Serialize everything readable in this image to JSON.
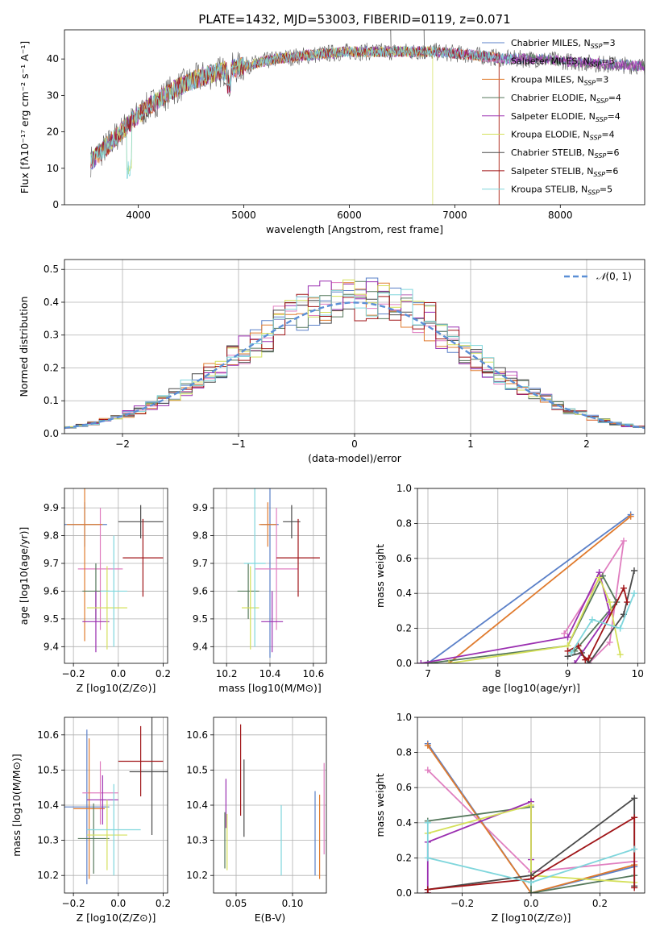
{
  "page": {
    "title": "PLATE=1432, MJD=53003, FIBERID=0119, z=0.071"
  },
  "colors": {
    "Chabrier MILES": "#5b80c8",
    "Salpeter MILES": "#e07fc0",
    "Kroupa MILES": "#e07b2e",
    "Chabrier ELODIE": "#55785b",
    "Salpeter ELODIE": "#9a2fb0",
    "Kroupa ELODIE": "#d4e05a",
    "Chabrier STELIB": "#4a4a4a",
    "Salpeter STELIB": "#a01518",
    "Kroupa STELIB": "#7fd6dc"
  },
  "chart_data": [
    {
      "id": "spectrum",
      "type": "line",
      "title": "PLATE=1432, MJD=53003, FIBERID=0119, z=0.071",
      "xlabel": "wavelength [Angstrom, rest frame]",
      "ylabel": "Flux [fλ10⁻¹⁷ erg cm⁻² s⁻¹ A⁻¹]",
      "xlim": [
        3300,
        8800
      ],
      "ylim": [
        0,
        48
      ],
      "xticks": [
        4000,
        5000,
        6000,
        7000,
        8000
      ],
      "yticks": [
        0,
        10,
        20,
        30,
        40
      ],
      "grid": false,
      "legend_position": "top-right",
      "legend": [
        "Chabrier MILES, N_SSP=3",
        "Salpeter MILES, N_SSP=3",
        "Kroupa MILES, N_SSP=3",
        "Chabrier ELODIE, N_SSP=4",
        "Salpeter ELODIE, N_SSP=4",
        "Kroupa ELODIE, N_SSP=4",
        "Chabrier STELIB, N_SSP=6",
        "Salpeter STELIB, N_SSP=6",
        "Kroupa STELIB, N_SSP=5"
      ],
      "continuum": {
        "x": [
          3550,
          3700,
          3900,
          4100,
          4300,
          4500,
          4700,
          5000,
          5300,
          5600,
          6000,
          6400,
          6800,
          7200,
          7500,
          7800,
          8200,
          8800
        ],
        "y": [
          12,
          16,
          22,
          27,
          31,
          34,
          36,
          38,
          40,
          41,
          42,
          42,
          42,
          41,
          40,
          40,
          39,
          38
        ]
      }
    },
    {
      "id": "residuals",
      "type": "bar",
      "xlabel": "(data-model)/error",
      "ylabel": "Normed distribution",
      "xlim": [
        -2.5,
        2.5
      ],
      "ylim": [
        0,
        0.53
      ],
      "xticks": [
        -2,
        -1,
        0,
        1,
        2
      ],
      "yticks": [
        0.0,
        0.1,
        0.2,
        0.3,
        0.4,
        0.5
      ],
      "grid": true,
      "legend_position": "top-right",
      "legend": [
        "N(0,1)"
      ]
    },
    {
      "id": "age-vs-Z",
      "type": "scatter",
      "xlabel": "Z [log10(Z/Z⊙)]",
      "ylabel": "age  [log10(age/yr)]",
      "xlim": [
        -0.24,
        0.22
      ],
      "ylim": [
        9.34,
        9.97
      ],
      "xticks": [
        -0.2,
        0.0,
        0.2
      ],
      "yticks": [
        9.4,
        9.5,
        9.6,
        9.7,
        9.8,
        9.9
      ],
      "grid": true,
      "points": [
        {
          "model": "Chabrier MILES",
          "x": -0.15,
          "xerr": 0.1,
          "y": 9.84,
          "yerr": 0.08
        },
        {
          "model": "Salpeter MILES",
          "x": -0.08,
          "xerr": 0.1,
          "y": 9.68,
          "yerr": 0.22
        },
        {
          "model": "Kroupa MILES",
          "x": -0.15,
          "xerr": 0.08,
          "y": 9.84,
          "yerr": 0.42
        },
        {
          "model": "Chabrier ELODIE",
          "x": -0.1,
          "xerr": 0.06,
          "y": 9.6,
          "yerr": 0.1
        },
        {
          "model": "Salpeter ELODIE",
          "x": -0.1,
          "xerr": 0.06,
          "y": 9.49,
          "yerr": 0.11
        },
        {
          "model": "Kroupa ELODIE",
          "x": -0.05,
          "xerr": 0.09,
          "y": 9.54,
          "yerr": 0.15
        },
        {
          "model": "Chabrier STELIB",
          "x": 0.1,
          "xerr": 0.1,
          "y": 9.85,
          "yerr": 0.06
        },
        {
          "model": "Salpeter STELIB",
          "x": 0.11,
          "xerr": 0.09,
          "y": 9.72,
          "yerr": 0.14
        },
        {
          "model": "Kroupa STELIB",
          "x": -0.02,
          "xerr": 0.06,
          "y": 9.6,
          "yerr": 0.2
        }
      ]
    },
    {
      "id": "age-vs-mass",
      "type": "scatter",
      "xlabel": "mass [log10(M/M⊙)]",
      "ylabel": "",
      "xlim": [
        10.14,
        10.66
      ],
      "ylim": [
        9.34,
        9.97
      ],
      "xticks": [
        10.2,
        10.4,
        10.6
      ],
      "yticks": [
        9.4,
        9.5,
        9.6,
        9.7,
        9.8,
        9.9
      ],
      "grid": true,
      "points": [
        {
          "model": "Chabrier MILES",
          "x": 10.4,
          "xerr": 0.04,
          "y": 9.84,
          "yerr": 0.48
        },
        {
          "model": "Salpeter MILES",
          "x": 10.43,
          "xerr": 0.1,
          "y": 9.68,
          "yerr": 0.22
        },
        {
          "model": "Kroupa MILES",
          "x": 10.39,
          "xerr": 0.04,
          "y": 9.84,
          "yerr": 0.08
        },
        {
          "model": "Chabrier ELODIE",
          "x": 10.3,
          "xerr": 0.05,
          "y": 9.6,
          "yerr": 0.1
        },
        {
          "model": "Salpeter ELODIE",
          "x": 10.41,
          "xerr": 0.05,
          "y": 9.49,
          "yerr": 0.11
        },
        {
          "model": "Kroupa ELODIE",
          "x": 10.31,
          "xerr": 0.04,
          "y": 9.54,
          "yerr": 0.15
        },
        {
          "model": "Chabrier STELIB",
          "x": 10.5,
          "xerr": 0.04,
          "y": 9.85,
          "yerr": 0.06
        },
        {
          "model": "Salpeter STELIB",
          "x": 10.53,
          "xerr": 0.1,
          "y": 9.72,
          "yerr": 0.14
        },
        {
          "model": "Kroupa STELIB",
          "x": 10.33,
          "xerr": 0.05,
          "y": 9.7,
          "yerr": 0.3
        }
      ]
    },
    {
      "id": "weights-vs-age",
      "type": "line",
      "xlabel": "age  [log10(age/yr)]",
      "ylabel": "mass weight",
      "xlim": [
        6.85,
        10.1
      ],
      "ylim": [
        0,
        1
      ],
      "xticks": [
        7,
        8,
        9,
        10
      ],
      "yticks": [
        0.0,
        0.2,
        0.4,
        0.6,
        0.8,
        1.0
      ],
      "grid": true,
      "series": [
        {
          "model": "Chabrier MILES",
          "x": [
            7.0,
            9.9
          ],
          "y": [
            0.0,
            0.85
          ]
        },
        {
          "model": "Salpeter MILES",
          "x": [
            8.95,
            9.8,
            9.6,
            9.3
          ],
          "y": [
            0.17,
            0.7,
            0.12,
            0.0
          ]
        },
        {
          "model": "Kroupa MILES",
          "x": [
            7.3,
            9.9
          ],
          "y": [
            0.0,
            0.84
          ]
        },
        {
          "model": "Chabrier ELODIE",
          "x": [
            7.0,
            9.0,
            9.5,
            9.7,
            9.1
          ],
          "y": [
            0.0,
            0.1,
            0.5,
            0.35,
            0.07
          ]
        },
        {
          "model": "Salpeter ELODIE",
          "x": [
            6.9,
            9.0,
            9.45,
            9.6,
            9.1
          ],
          "y": [
            0.0,
            0.15,
            0.52,
            0.29,
            0.0
          ]
        },
        {
          "model": "Kroupa ELODIE",
          "x": [
            7.3,
            9.0,
            9.45,
            9.6,
            9.75
          ],
          "y": [
            0.0,
            0.1,
            0.49,
            0.35,
            0.05
          ]
        },
        {
          "model": "Chabrier STELIB",
          "x": [
            9.0,
            9.2,
            9.3,
            9.8,
            9.95
          ],
          "y": [
            0.04,
            0.06,
            0.0,
            0.28,
            0.53
          ]
        },
        {
          "model": "Salpeter STELIB",
          "x": [
            9.0,
            9.15,
            9.25,
            9.3,
            9.8,
            9.85
          ],
          "y": [
            0.07,
            0.1,
            0.02,
            0.03,
            0.43,
            0.35
          ]
        },
        {
          "model": "Kroupa STELIB",
          "x": [
            9.05,
            9.35,
            9.75,
            9.95
          ],
          "y": [
            0.06,
            0.25,
            0.2,
            0.4
          ]
        }
      ]
    },
    {
      "id": "mass-vs-Z",
      "type": "scatter",
      "xlabel": "Z [log10(Z/Z⊙)]",
      "ylabel": "mass [log10(M/M⊙)]",
      "xlim": [
        -0.24,
        0.22
      ],
      "ylim": [
        10.15,
        10.65
      ],
      "xticks": [
        -0.2,
        0.0,
        0.2
      ],
      "yticks": [
        10.2,
        10.3,
        10.4,
        10.5,
        10.6
      ],
      "grid": true,
      "points": [
        {
          "model": "Chabrier MILES",
          "x": -0.14,
          "xerr": 0.1,
          "y": 10.395,
          "yerr": 0.22
        },
        {
          "model": "Salpeter MILES",
          "x": -0.08,
          "xerr": 0.08,
          "y": 10.435,
          "yerr": 0.09
        },
        {
          "model": "Kroupa MILES",
          "x": -0.13,
          "xerr": 0.07,
          "y": 10.39,
          "yerr": 0.2
        },
        {
          "model": "Chabrier ELODIE",
          "x": -0.11,
          "xerr": 0.07,
          "y": 10.305,
          "yerr": 0.1
        },
        {
          "model": "Salpeter ELODIE",
          "x": -0.07,
          "xerr": 0.07,
          "y": 10.415,
          "yerr": 0.07
        },
        {
          "model": "Kroupa ELODIE",
          "x": -0.05,
          "xerr": 0.09,
          "y": 10.315,
          "yerr": 0.1
        },
        {
          "model": "Chabrier STELIB",
          "x": 0.15,
          "xerr": 0.1,
          "y": 10.495,
          "yerr": 0.18
        },
        {
          "model": "Salpeter STELIB",
          "x": 0.1,
          "xerr": 0.1,
          "y": 10.525,
          "yerr": 0.1
        },
        {
          "model": "Kroupa STELIB",
          "x": -0.02,
          "xerr": 0.12,
          "y": 10.33,
          "yerr": 0.13
        }
      ]
    },
    {
      "id": "mass-vs-EBV",
      "type": "scatter",
      "xlabel": "E(B-V)",
      "ylabel": "",
      "xlim": [
        0.03,
        0.13
      ],
      "ylim": [
        10.15,
        10.65
      ],
      "xticks": [
        0.05,
        0.1
      ],
      "yticks": [
        10.2,
        10.3,
        10.4,
        10.5,
        10.6
      ],
      "grid": true,
      "points": [
        {
          "model": "Chabrier MILES",
          "x": 0.12,
          "xerr": 0.0,
          "y": 10.32,
          "yerr": 0.12
        },
        {
          "model": "Salpeter MILES",
          "x": 0.128,
          "xerr": 0.0,
          "y": 10.39,
          "yerr": 0.13
        },
        {
          "model": "Kroupa MILES",
          "x": 0.124,
          "xerr": 0.0,
          "y": 10.31,
          "yerr": 0.12
        },
        {
          "model": "Chabrier ELODIE",
          "x": 0.04,
          "xerr": 0.0,
          "y": 10.3,
          "yerr": 0.08
        },
        {
          "model": "Salpeter ELODIE",
          "x": 0.041,
          "xerr": 0.0,
          "y": 10.405,
          "yerr": 0.07
        },
        {
          "model": "Kroupa ELODIE",
          "x": 0.042,
          "xerr": 0.0,
          "y": 10.295,
          "yerr": 0.08
        },
        {
          "model": "Chabrier STELIB",
          "x": 0.057,
          "xerr": 0.0,
          "y": 10.42,
          "yerr": 0.11
        },
        {
          "model": "Salpeter STELIB",
          "x": 0.054,
          "xerr": 0.0,
          "y": 10.5,
          "yerr": 0.13
        },
        {
          "model": "Kroupa STELIB",
          "x": 0.09,
          "xerr": 0.0,
          "y": 10.3,
          "yerr": 0.1
        }
      ]
    },
    {
      "id": "weights-vs-Z",
      "type": "line",
      "xlabel": "Z [log10(Z/Z⊙)]",
      "ylabel": "mass weight",
      "xlim": [
        -0.33,
        0.33
      ],
      "ylim": [
        0,
        1
      ],
      "xticks": [
        -0.2,
        0.0,
        0.2
      ],
      "yticks": [
        0.0,
        0.2,
        0.4,
        0.6,
        0.8,
        1.0
      ],
      "grid": true,
      "series": [
        {
          "model": "Chabrier MILES",
          "x": [
            -0.3,
            0.0,
            0.3
          ],
          "y": [
            0.85,
            0.0,
            0.15
          ]
        },
        {
          "model": "Salpeter MILES",
          "x": [
            -0.3,
            0.0,
            0.3
          ],
          "y": [
            0.7,
            0.12,
            0.18
          ]
        },
        {
          "model": "Kroupa MILES",
          "x": [
            -0.3,
            0.0,
            0.3
          ],
          "y": [
            0.84,
            0.0,
            0.16
          ]
        },
        {
          "model": "Chabrier ELODIE",
          "x": [
            -0.3,
            0.0,
            0.0,
            0.3
          ],
          "y": [
            0.41,
            0.49,
            0.0,
            0.1
          ]
        },
        {
          "model": "Salpeter ELODIE",
          "x": [
            -0.3,
            -0.3,
            0.0,
            0.0
          ],
          "y": [
            0.0,
            0.29,
            0.52,
            0.19
          ]
        },
        {
          "model": "Kroupa ELODIE",
          "x": [
            -0.3,
            0.0,
            0.0,
            0.3
          ],
          "y": [
            0.34,
            0.5,
            0.1,
            0.06
          ]
        },
        {
          "model": "Chabrier STELIB",
          "x": [
            -0.3,
            0.0,
            0.3,
            0.3
          ],
          "y": [
            0.02,
            0.1,
            0.54,
            0.04
          ]
        },
        {
          "model": "Salpeter STELIB",
          "x": [
            -0.3,
            -0.3,
            0.0,
            0.3,
            0.3
          ],
          "y": [
            0.0,
            0.02,
            0.08,
            0.43,
            0.03
          ]
        },
        {
          "model": "Kroupa STELIB",
          "x": [
            -0.3,
            -0.3,
            0.0,
            0.3
          ],
          "y": [
            0.4,
            0.2,
            0.06,
            0.25
          ]
        }
      ]
    }
  ]
}
